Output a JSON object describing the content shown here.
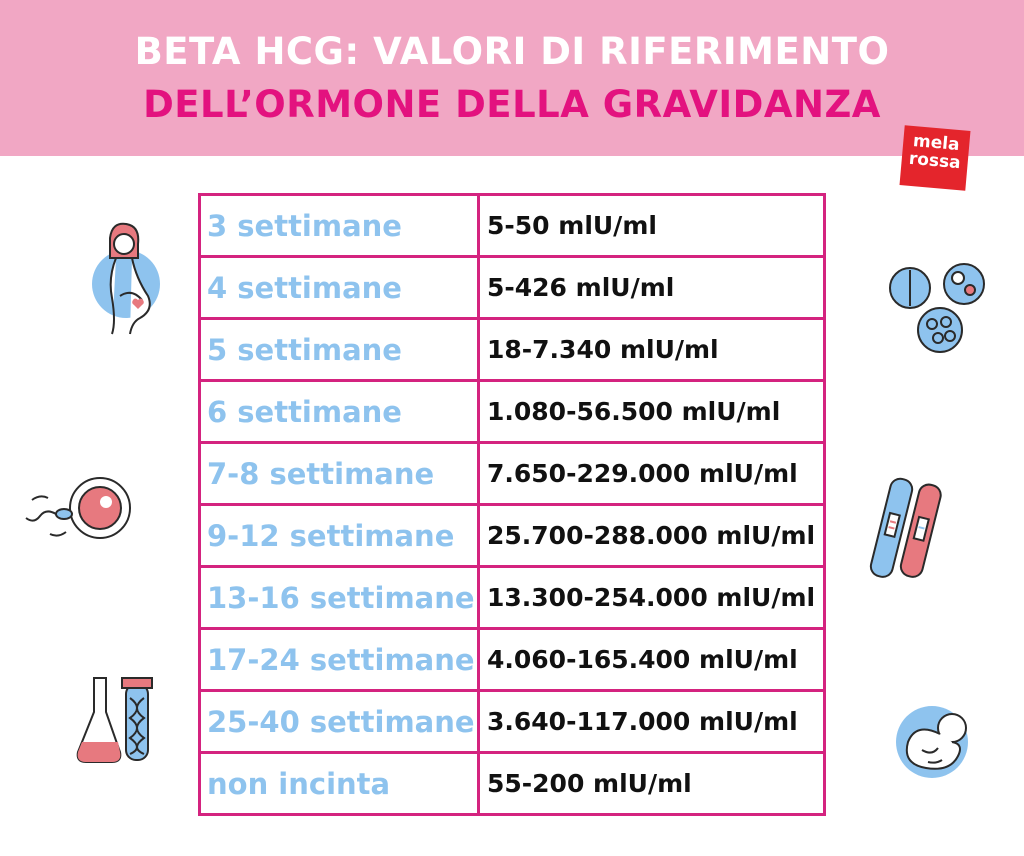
{
  "header": {
    "title_line1": "BETA HCG: VALORI DI RIFERIMENTO",
    "title_line2": "DELL’ORMONE DELLA GRAVIDANZA"
  },
  "logo": {
    "line1": "mela",
    "line2": "rossa"
  },
  "table": {
    "rows": [
      {
        "week": "3 settimane",
        "value": "5-50 mlU/ml"
      },
      {
        "week": "4 settimane",
        "value": "5-426 mlU/ml"
      },
      {
        "week": "5 settimane",
        "value": "18-7.340 mlU/ml"
      },
      {
        "week": "6 settimane",
        "value": "1.080-56.500 mlU/ml"
      },
      {
        "week": "7-8 settimane",
        "value": "7.650-229.000 mlU/ml"
      },
      {
        "week": "9-12 settimane",
        "value": "25.700-288.000 mlU/ml"
      },
      {
        "week": "13-16 settimane",
        "value": "13.300-254.000 mlU/ml"
      },
      {
        "week": "17-24 settimane",
        "value": "4.060-165.400 mlU/ml"
      },
      {
        "week": "25-40 settimane",
        "value": "3.640-117.000 mlU/ml"
      },
      {
        "week": "non incinta",
        "value": "55-200 mlU/ml"
      }
    ]
  },
  "colors": {
    "header_bg": "#f1a7c4",
    "title_white": "#ffffff",
    "title_magenta": "#e3127f",
    "table_border": "#d4237f",
    "week_text": "#8ec3ee",
    "value_text": "#111111",
    "logo_bg": "#e4252c"
  },
  "icons": [
    "pregnant-woman-icon",
    "cells-icon",
    "sperm-egg-icon",
    "pregnancy-test-icon",
    "lab-test-tube-icon",
    "fetus-icon"
  ]
}
